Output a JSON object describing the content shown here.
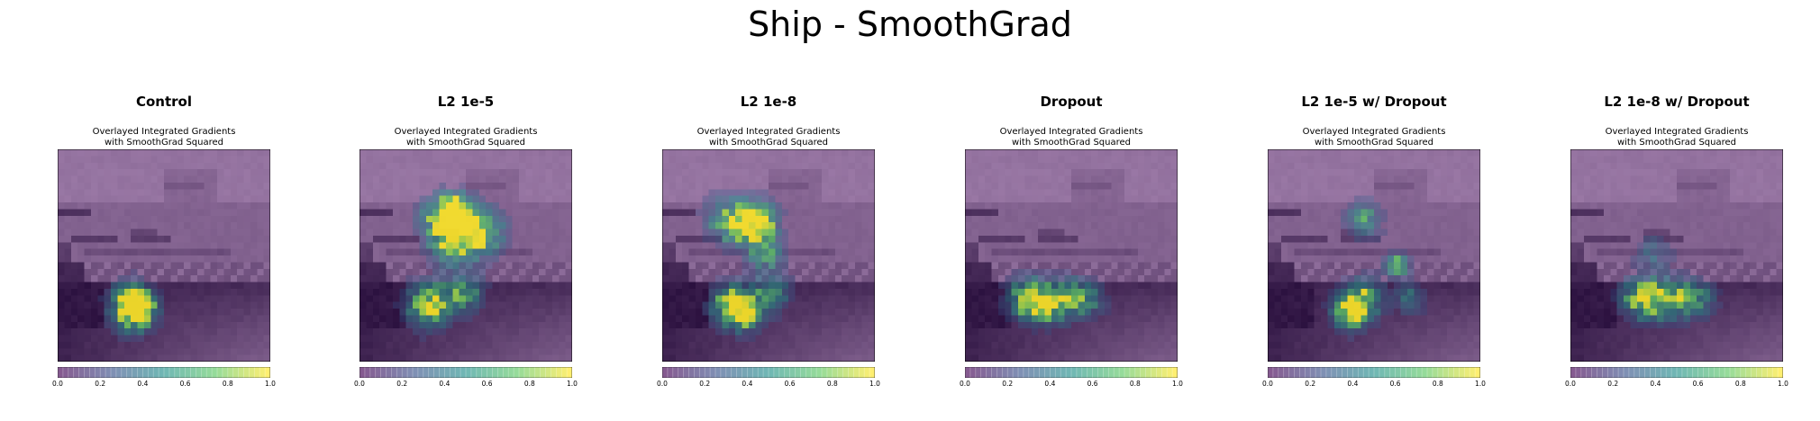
{
  "figure": {
    "title": "Ship - SmoothGrad"
  },
  "colormap": [
    "#440154",
    "#3b528b",
    "#21918c",
    "#5ec962",
    "#fde725"
  ],
  "overlay": {
    "background_tint": "#9d7ba8"
  },
  "colorbar": {
    "ticks": [
      "0.0",
      "0.2",
      "0.4",
      "0.6",
      "0.8",
      "1.0"
    ],
    "range": [
      0,
      1
    ]
  },
  "panels": [
    {
      "title": "Control",
      "subtitle": "Overlayed Integrated Gradients\nwith SmoothGrad Squared"
    },
    {
      "title": "L2 1e-5",
      "subtitle": "Overlayed Integrated Gradients\nwith SmoothGrad Squared"
    },
    {
      "title": "L2 1e-8",
      "subtitle": "Overlayed Integrated Gradients\nwith SmoothGrad Squared"
    },
    {
      "title": "Dropout",
      "subtitle": "Overlayed Integrated Gradients\nwith SmoothGrad Squared"
    },
    {
      "title": "L2 1e-5 w/ Dropout",
      "subtitle": "Overlayed Integrated Gradients\nwith SmoothGrad Squared"
    },
    {
      "title": "L2 1e-8 w/ Dropout",
      "subtitle": "Overlayed Integrated Gradients\nwith SmoothGrad Squared"
    }
  ]
}
